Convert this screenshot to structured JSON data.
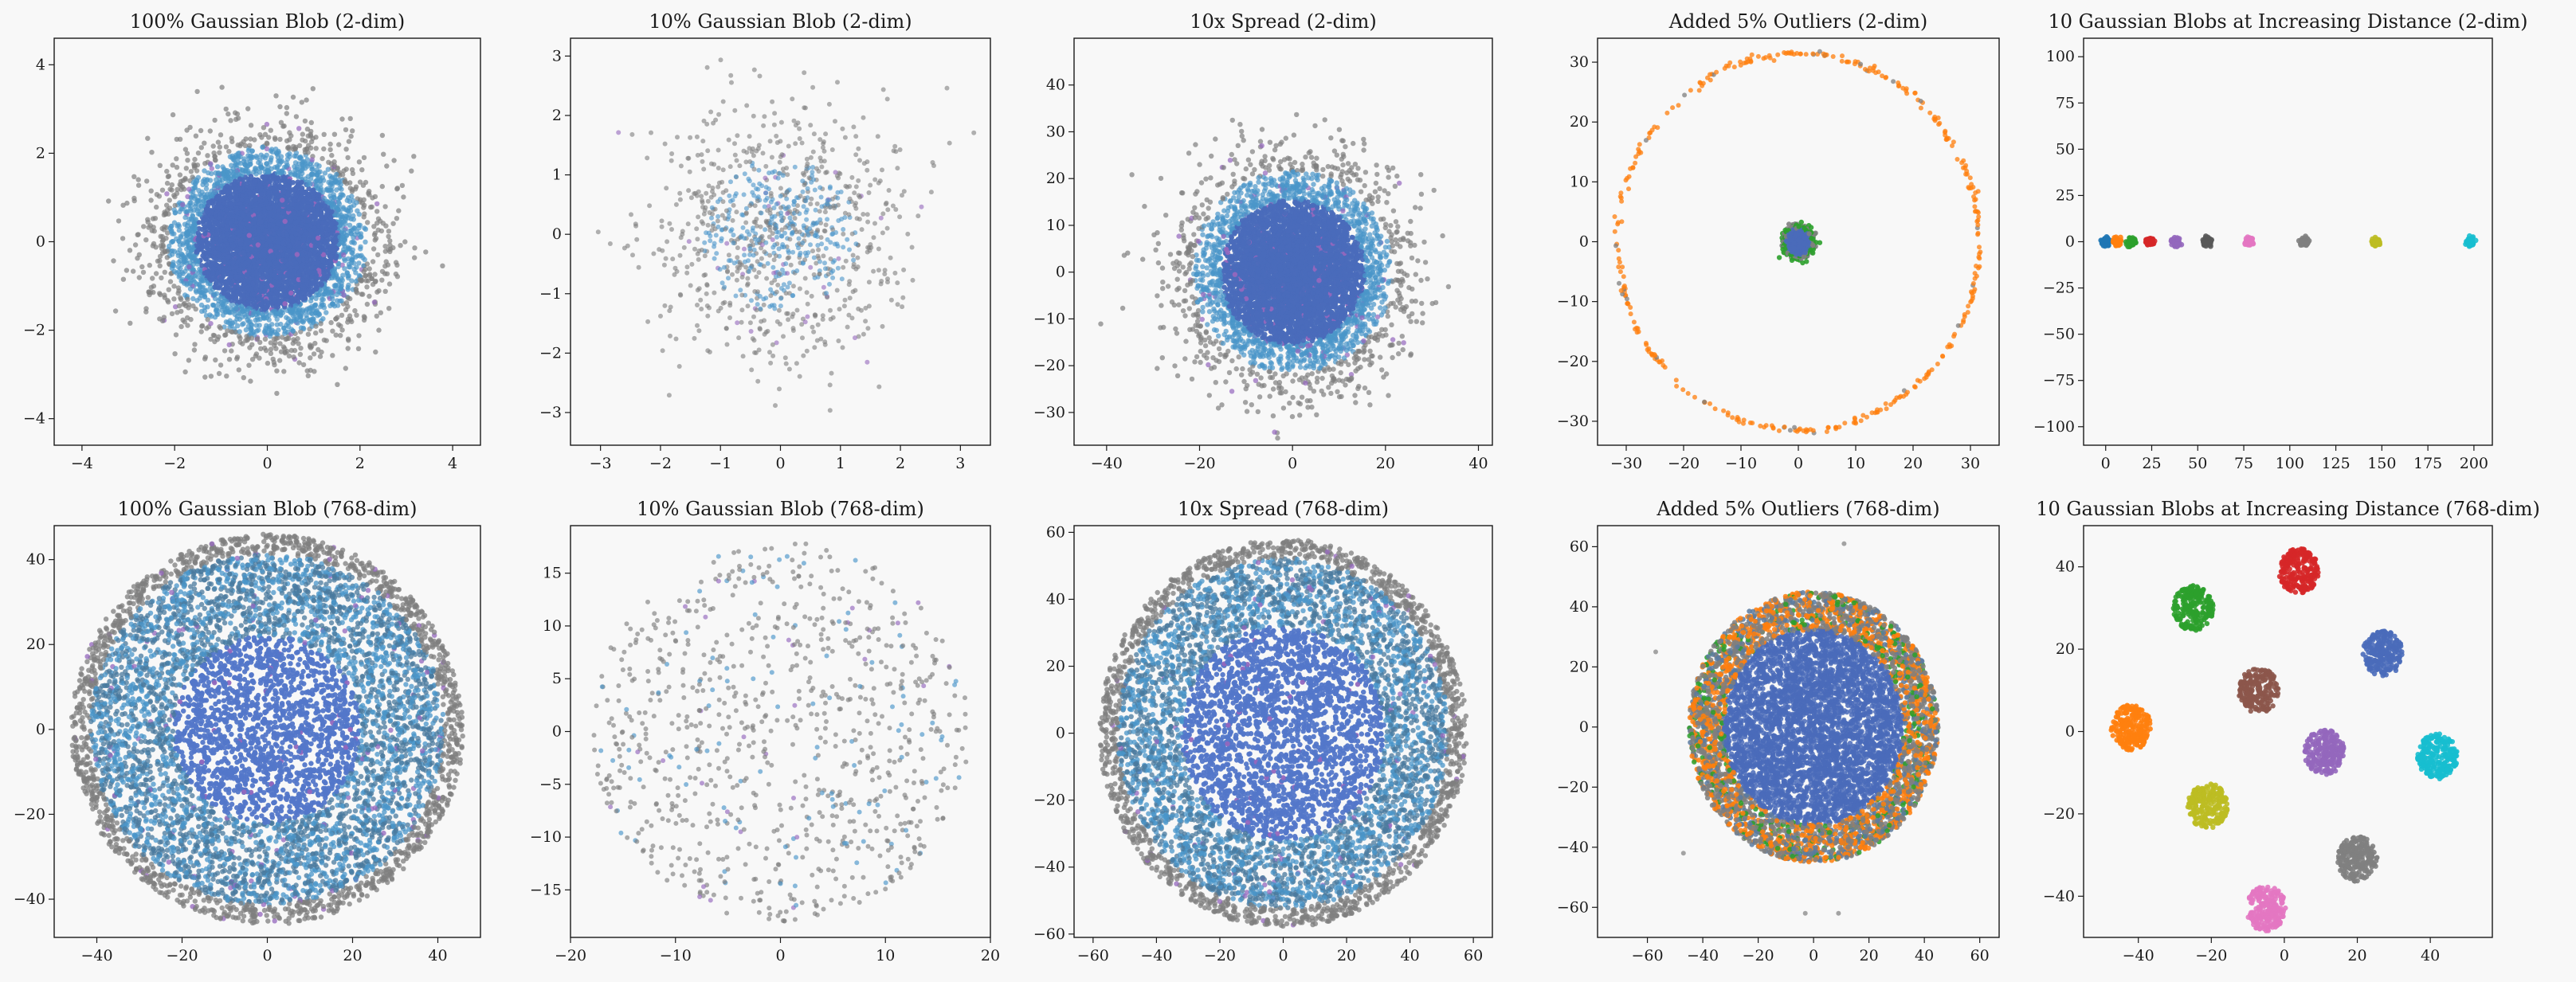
{
  "figure": {
    "background": "#f8f8f8",
    "palette": [
      "#1f77b4",
      "#ff7f0e",
      "#2ca02c",
      "#d62728",
      "#9467bd",
      "#8c564b",
      "#e377c2",
      "#7f7f7f",
      "#bcbd22",
      "#17becf"
    ]
  },
  "chart_data": [
    {
      "type": "scatter",
      "title": "100% Gaussian Blob (2-dim)",
      "xlim": [
        -4.6,
        4.6
      ],
      "ylim": [
        -4.6,
        4.6
      ],
      "xticks": [
        -4,
        -2,
        0,
        2,
        4
      ],
      "yticks": [
        -4,
        -2,
        0,
        2,
        4
      ],
      "distribution": {
        "kind": "gaussian",
        "sigma": 1.0,
        "n": 6000
      },
      "colors": {
        "core": "#4a6bba",
        "halo": "#4a95c9",
        "outer": "#7f7f7f",
        "accent": "#9467bd"
      }
    },
    {
      "type": "scatter",
      "title": "10% Gaussian Blob (2-dim)",
      "xlim": [
        -3.5,
        3.5
      ],
      "ylim": [
        -3.55,
        3.3
      ],
      "xticks": [
        -3,
        -2,
        -1,
        0,
        1,
        2,
        3
      ],
      "yticks": [
        -3,
        -2,
        -1,
        0,
        1,
        2,
        3
      ],
      "distribution": {
        "kind": "gaussian-sparse",
        "sigma": 1.0,
        "n": 1000
      },
      "colors": {
        "core": "#4a95c9",
        "outer": "#7f7f7f",
        "accent": "#9467bd"
      }
    },
    {
      "type": "scatter",
      "title": "10x Spread (2-dim)",
      "xlim": [
        -47,
        43
      ],
      "ylim": [
        -37,
        50
      ],
      "xticks": [
        -40,
        -20,
        0,
        20,
        40
      ],
      "yticks": [
        -30,
        -20,
        -10,
        0,
        10,
        20,
        30,
        40
      ],
      "distribution": {
        "kind": "gaussian",
        "sigma": 10.0,
        "n": 6000
      },
      "colors": {
        "core": "#4a6bba",
        "halo": "#4a95c9",
        "outer": "#7f7f7f",
        "accent": "#9467bd"
      }
    },
    {
      "type": "scatter",
      "title": "Added 5% Outliers (2-dim)",
      "xlim": [
        -35,
        35
      ],
      "ylim": [
        -34,
        34
      ],
      "xticks": [
        -30,
        -20,
        -10,
        0,
        10,
        20,
        30
      ],
      "yticks": [
        -30,
        -20,
        -10,
        0,
        10,
        20,
        30
      ],
      "distribution": {
        "kind": "blob-with-ring",
        "sigma": 1.0,
        "ring_radius": 31.5
      },
      "colors": {
        "core": "#4a6bba",
        "ring": "#ff7f0e",
        "outer": "#7f7f7f",
        "accent": "#2ca02c"
      }
    },
    {
      "type": "scatter",
      "title": "10 Gaussian Blobs at Increasing Distance (2-dim)",
      "xlim": [
        -12,
        210
      ],
      "ylim": [
        -110,
        110
      ],
      "xticks": [
        0,
        25,
        50,
        75,
        100,
        125,
        150,
        175,
        200
      ],
      "yticks": [
        -100,
        -75,
        -50,
        -25,
        0,
        25,
        50,
        75,
        100
      ],
      "distribution": {
        "kind": "blobs-on-line"
      },
      "blobs": [
        {
          "x": 0,
          "y": 0,
          "color": "#1f77b4"
        },
        {
          "x": 6,
          "y": 0,
          "color": "#ff7f0e"
        },
        {
          "x": 14,
          "y": 0,
          "color": "#2ca02c"
        },
        {
          "x": 24,
          "y": 0,
          "color": "#d62728"
        },
        {
          "x": 38,
          "y": 0,
          "color": "#9467bd"
        },
        {
          "x": 55,
          "y": 0,
          "color": "#595959"
        },
        {
          "x": 78,
          "y": 0,
          "color": "#e377c2"
        },
        {
          "x": 108,
          "y": 0,
          "color": "#7f7f7f"
        },
        {
          "x": 147,
          "y": 0,
          "color": "#bcbd22"
        },
        {
          "x": 198,
          "y": 0,
          "color": "#17becf"
        }
      ]
    },
    {
      "type": "scatter",
      "title": "100% Gaussian Blob (768-dim)",
      "xlim": [
        -50,
        50
      ],
      "ylim": [
        -49,
        48
      ],
      "xticks": [
        -40,
        -20,
        0,
        20,
        40
      ],
      "yticks": [
        -40,
        -20,
        0,
        20,
        40
      ],
      "distribution": {
        "kind": "annulus",
        "inner": 22,
        "outer": 46,
        "n": 7000
      },
      "colors": {
        "core": "#5377c9",
        "halo": "#4a95c9",
        "outer": "#7f7f7f",
        "accent": "#9467bd"
      }
    },
    {
      "type": "scatter",
      "title": "10% Gaussian Blob (768-dim)",
      "xlim": [
        -20,
        20
      ],
      "ylim": [
        -19.5,
        19.5
      ],
      "xticks": [
        -20,
        -10,
        0,
        10,
        20
      ],
      "yticks": [
        -15,
        -10,
        -5,
        0,
        5,
        10,
        15
      ],
      "distribution": {
        "kind": "disk-sparse",
        "radius": 18,
        "n": 900
      },
      "colors": {
        "core": "#4a95c9",
        "outer": "#7f7f7f",
        "accent": "#9467bd"
      }
    },
    {
      "type": "scatter",
      "title": "10x Spread (768-dim)",
      "xlim": [
        -66,
        66
      ],
      "ylim": [
        -61,
        62
      ],
      "xticks": [
        -60,
        -40,
        -20,
        0,
        20,
        40,
        60
      ],
      "yticks": [
        -60,
        -40,
        -20,
        0,
        20,
        40,
        60
      ],
      "distribution": {
        "kind": "annulus",
        "inner": 32,
        "outer": 58,
        "n": 7000
      },
      "colors": {
        "core": "#5377c9",
        "halo": "#4a95c9",
        "outer": "#7f7f7f",
        "accent": "#9467bd"
      }
    },
    {
      "type": "scatter",
      "title": "Added 5% Outliers (768-dim)",
      "xlim": [
        -78,
        67
      ],
      "ylim": [
        -70,
        67
      ],
      "xticks": [
        -60,
        -40,
        -20,
        0,
        20,
        40,
        60
      ],
      "yticks": [
        -60,
        -40,
        -20,
        0,
        20,
        40,
        60
      ],
      "distribution": {
        "kind": "disk-mixed",
        "radius": 45,
        "n": 7000
      },
      "colors": {
        "core": "#4a6bba",
        "halo": "#ff7f0e",
        "outer": "#7f7f7f",
        "accent": "#2ca02c"
      }
    },
    {
      "type": "scatter",
      "title": "10 Gaussian Blobs at Increasing Distance (768-dim)",
      "xlim": [
        -55,
        57
      ],
      "ylim": [
        -50,
        50
      ],
      "xticks": [
        -40,
        -20,
        0,
        20,
        40
      ],
      "yticks": [
        -40,
        -20,
        0,
        20,
        40
      ],
      "distribution": {
        "kind": "blobs-scattered"
      },
      "blobs": [
        {
          "x": 27,
          "y": 19,
          "color": "#4a6bba"
        },
        {
          "x": -42,
          "y": 1,
          "color": "#ff7f0e"
        },
        {
          "x": -25,
          "y": 30,
          "color": "#2ca02c"
        },
        {
          "x": 4,
          "y": 39,
          "color": "#d62728"
        },
        {
          "x": 11,
          "y": -5,
          "color": "#9467bd"
        },
        {
          "x": -7,
          "y": 10,
          "color": "#8c564b"
        },
        {
          "x": -5,
          "y": -43,
          "color": "#e377c2"
        },
        {
          "x": 20,
          "y": -31,
          "color": "#7f7f7f"
        },
        {
          "x": -21,
          "y": -18,
          "color": "#bcbd22"
        },
        {
          "x": 42,
          "y": -6,
          "color": "#17becf"
        }
      ]
    }
  ]
}
